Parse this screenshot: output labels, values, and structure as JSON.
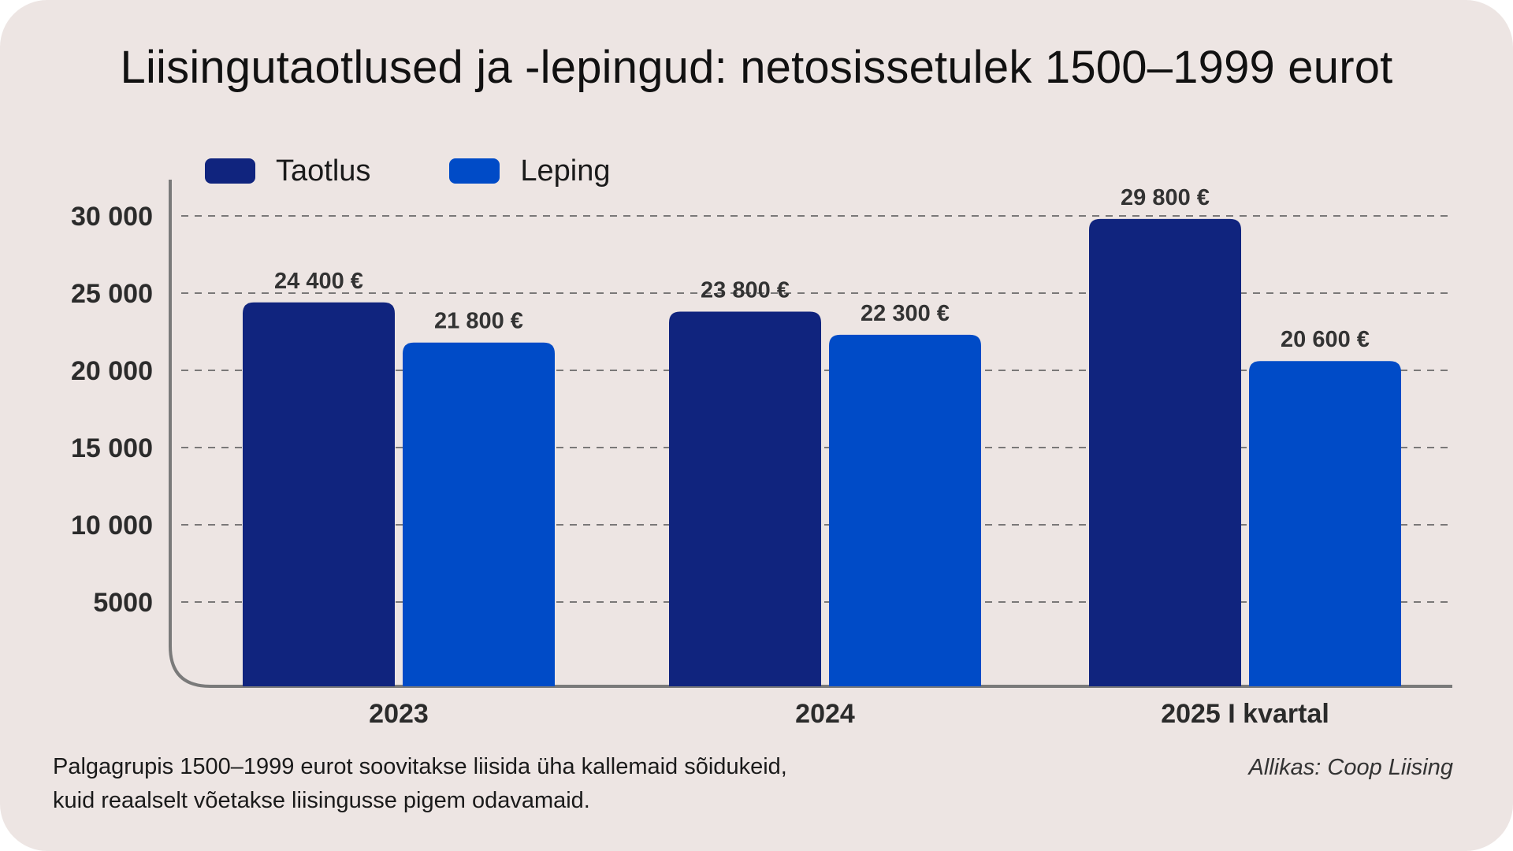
{
  "title": "Liisingutaotlused ja -lepingud: netosissetulek 1500–1999 eurot",
  "colors": {
    "background": "#ede5e3",
    "taotlus": "#10247e",
    "leping": "#004bc7",
    "axis": "#7a7a7a",
    "grid": "#555555"
  },
  "chart_data": {
    "type": "bar",
    "categories": [
      "2023",
      "2024",
      "2025 I kvartal"
    ],
    "series": [
      {
        "name": "Taotlus",
        "values": [
          24400,
          23800,
          29800
        ],
        "labels": [
          "24 400 €",
          "23 800 €",
          "29 800 €"
        ]
      },
      {
        "name": "Leping",
        "values": [
          21800,
          22300,
          20600
        ],
        "labels": [
          "21 800 €",
          "22 300 €",
          "20 600 €"
        ]
      }
    ],
    "yticks": [
      5000,
      10000,
      15000,
      20000,
      25000,
      30000
    ],
    "ytick_labels": [
      "5000",
      "10 000",
      "15 000",
      "20 000",
      "25 000",
      "30 000"
    ],
    "ylim": [
      0,
      32000
    ],
    "grid": true,
    "legend_position": "top-left"
  },
  "note": {
    "line1": "Palgagrupis 1500–1999 eurot soovitakse liisida üha kallemaid sõidukeid,",
    "line2": "kuid reaalselt võetakse liisingusse pigem odavamaid."
  },
  "source": "Allikas: Coop Liising"
}
